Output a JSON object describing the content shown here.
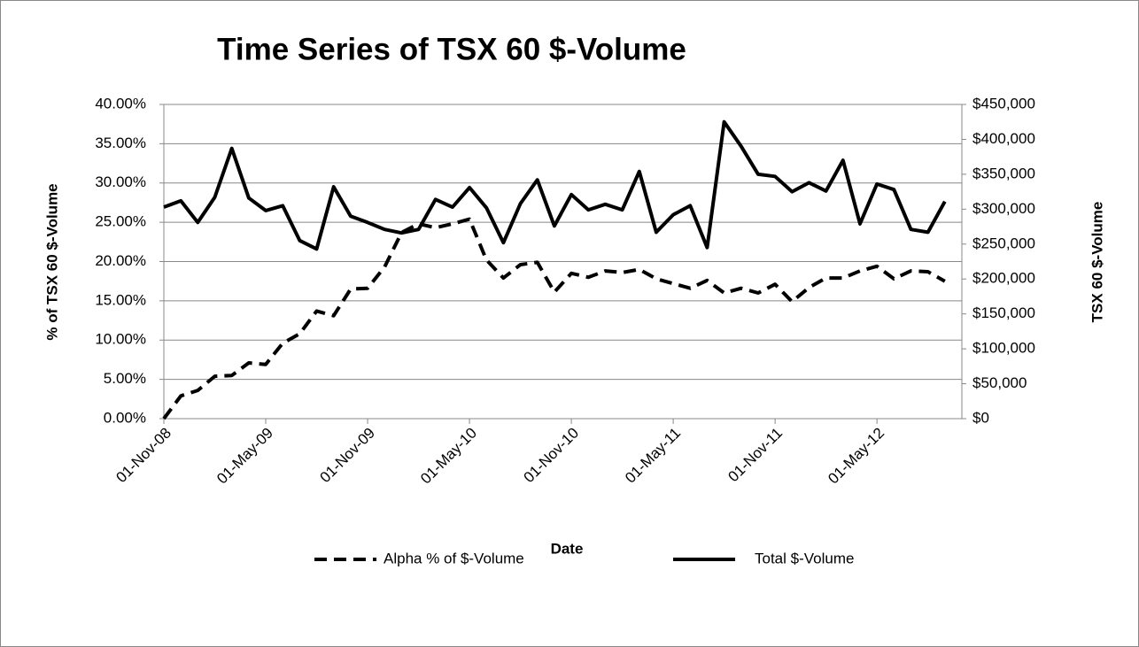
{
  "chart_data": {
    "type": "line",
    "title": "Time Series of TSX 60 $-Volume",
    "x_label": "Date",
    "y_label": "% of TSX 60 $-Volume",
    "y2_label": "TSX 60 $-Volume",
    "categories": [
      "01-Nov-08",
      null,
      null,
      null,
      null,
      null,
      "01-May-09",
      null,
      null,
      null,
      null,
      null,
      "01-Nov-09",
      null,
      null,
      null,
      null,
      null,
      "01-May-10",
      null,
      null,
      null,
      null,
      null,
      "01-Nov-10",
      null,
      null,
      null,
      null,
      null,
      "01-May-11",
      null,
      null,
      null,
      null,
      null,
      "01-Nov-11",
      null,
      null,
      null,
      null,
      null,
      "01-May-12",
      null,
      null,
      null,
      null
    ],
    "series": [
      {
        "name": "Alpha % of $-Volume",
        "color": "#000000",
        "line_style": "dashed",
        "values": [
          0,
          2.9,
          3.6,
          5.4,
          5.5,
          7.1,
          6.9,
          9.6,
          10.8,
          13.7,
          13.1,
          16.5,
          16.6,
          19.3,
          23.7,
          24.8,
          24.3,
          24.8,
          25.4,
          20.2,
          17.9,
          19.6,
          19.9,
          16.1,
          18.5,
          18.0,
          18.8,
          18.6,
          19.0,
          17.8,
          17.2,
          16.6,
          17.6,
          16.0,
          16.6,
          16.0,
          17.1,
          14.9,
          16.7,
          17.9,
          17.9,
          18.8,
          19.4,
          17.8,
          18.8,
          18.7,
          17.5
        ]
      },
      {
        "name": "Total $-Volume",
        "color": "#000000",
        "line_style": "solid",
        "axis": "y2",
        "values": [
          303000,
          312000,
          281000,
          317000,
          387000,
          316000,
          298000,
          305000,
          255000,
          243000,
          332000,
          290000,
          281000,
          271000,
          266000,
          271000,
          314000,
          303000,
          331000,
          302000,
          252000,
          308000,
          342000,
          276000,
          321000,
          299000,
          307000,
          299000,
          354000,
          267000,
          292000,
          305000,
          245000,
          425000,
          390000,
          350000,
          347000,
          325000,
          338000,
          326000,
          370000,
          279000,
          336000,
          328000,
          271000,
          267000,
          311000
        ]
      }
    ],
    "ylim": [
      0,
      40
    ],
    "yticks": [
      {
        "value": 0,
        "label": "0.00%"
      },
      {
        "value": 5,
        "label": "5.00%"
      },
      {
        "value": 10,
        "label": "10.00%"
      },
      {
        "value": 15,
        "label": "15.00%"
      },
      {
        "value": 20,
        "label": "20.00%"
      },
      {
        "value": 25,
        "label": "25.00%"
      },
      {
        "value": 30,
        "label": "30.00%"
      },
      {
        "value": 35,
        "label": "35.00%"
      },
      {
        "value": 40,
        "label": "40.00%"
      }
    ],
    "y2lim": [
      0,
      450000
    ],
    "y2ticks": [
      {
        "value": 0,
        "label": "$0"
      },
      {
        "value": 50000,
        "label": "$50,000"
      },
      {
        "value": 100000,
        "label": "$100,000"
      },
      {
        "value": 150000,
        "label": "$150,000"
      },
      {
        "value": 200000,
        "label": "$200,000"
      },
      {
        "value": 250000,
        "label": "$250,000"
      },
      {
        "value": 300000,
        "label": "$300,000"
      },
      {
        "value": 350000,
        "label": "$350,000"
      },
      {
        "value": 400000,
        "label": "$400,000"
      },
      {
        "value": 450000,
        "label": "$450,000"
      }
    ],
    "grid": true,
    "legend": "bottom"
  }
}
